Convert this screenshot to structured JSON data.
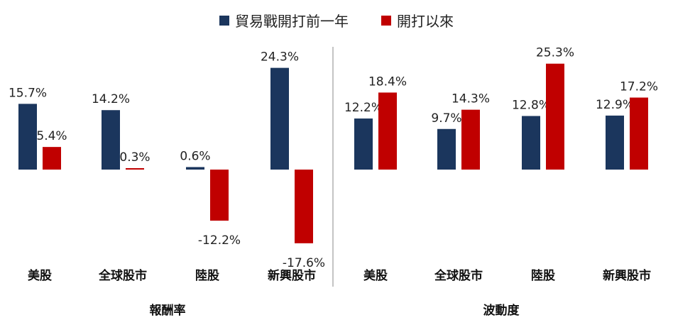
{
  "chart_data": {
    "type": "bar",
    "colors": {
      "series1": "#1b365d",
      "series2": "#c00000"
    },
    "legend_position": "top",
    "grid": false,
    "series": [
      {
        "name": "貿易戰開打前一年"
      },
      {
        "name": "開打以來"
      }
    ],
    "panels": [
      {
        "xlabel": "報酬率",
        "categories": [
          "美股",
          "全球股市",
          "陸股",
          "新興股市"
        ],
        "series1_values": [
          15.7,
          14.2,
          0.6,
          24.3
        ],
        "series2_values": [
          5.4,
          0.3,
          -12.2,
          -17.6
        ],
        "series1_labels": [
          "15.7%",
          "14.2%",
          "0.6%",
          "24.3%"
        ],
        "series2_labels": [
          "5.4%",
          "0.3%",
          "-12.2%",
          "-17.6%"
        ]
      },
      {
        "xlabel": "波動度",
        "categories": [
          "美股",
          "全球股市",
          "陸股",
          "新興股市"
        ],
        "series1_values": [
          12.2,
          9.7,
          12.8,
          12.9
        ],
        "series2_values": [
          18.4,
          14.3,
          25.3,
          17.2
        ],
        "series1_labels": [
          "12.2%",
          "9.7%",
          "12.8%",
          "12.9%"
        ],
        "series2_labels": [
          "18.4%",
          "14.3%",
          "25.3%",
          "17.2%"
        ]
      }
    ]
  }
}
